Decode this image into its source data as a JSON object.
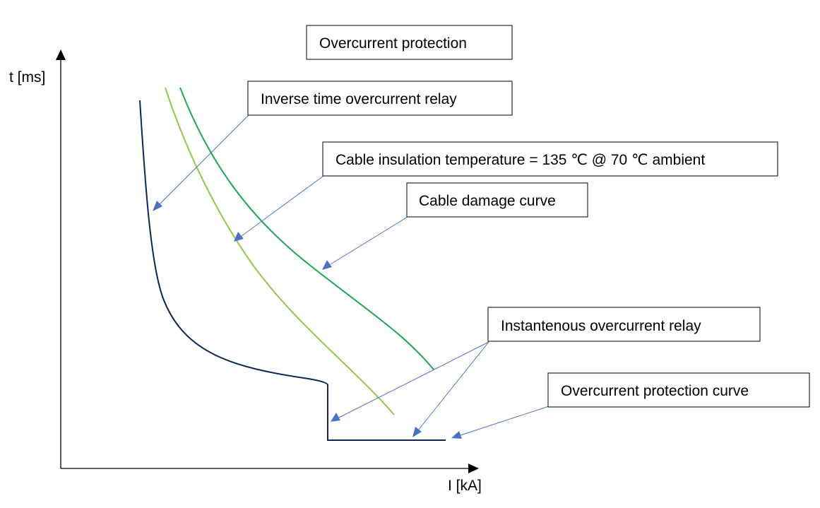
{
  "title": "Overcurrent protection",
  "axes": {
    "y_label": "t [ms]",
    "x_label": "I [kA]"
  },
  "labels": {
    "inverse_relay": "Inverse time overcurrent relay",
    "insulation_temp": "Cable insulation temperature = 135 ℃ @ 70 ℃ ambient",
    "cable_damage": "Cable damage curve",
    "instantaneous_relay": "Instantenous overcurrent relay",
    "protection_curve": "Overcurrent protection curve"
  },
  "colors": {
    "protection_curve": "#0d2557",
    "insulation_curve": "#92c94a",
    "damage_curve": "#1fa653",
    "leader": "#4a72c4",
    "axis": "#000000"
  }
}
